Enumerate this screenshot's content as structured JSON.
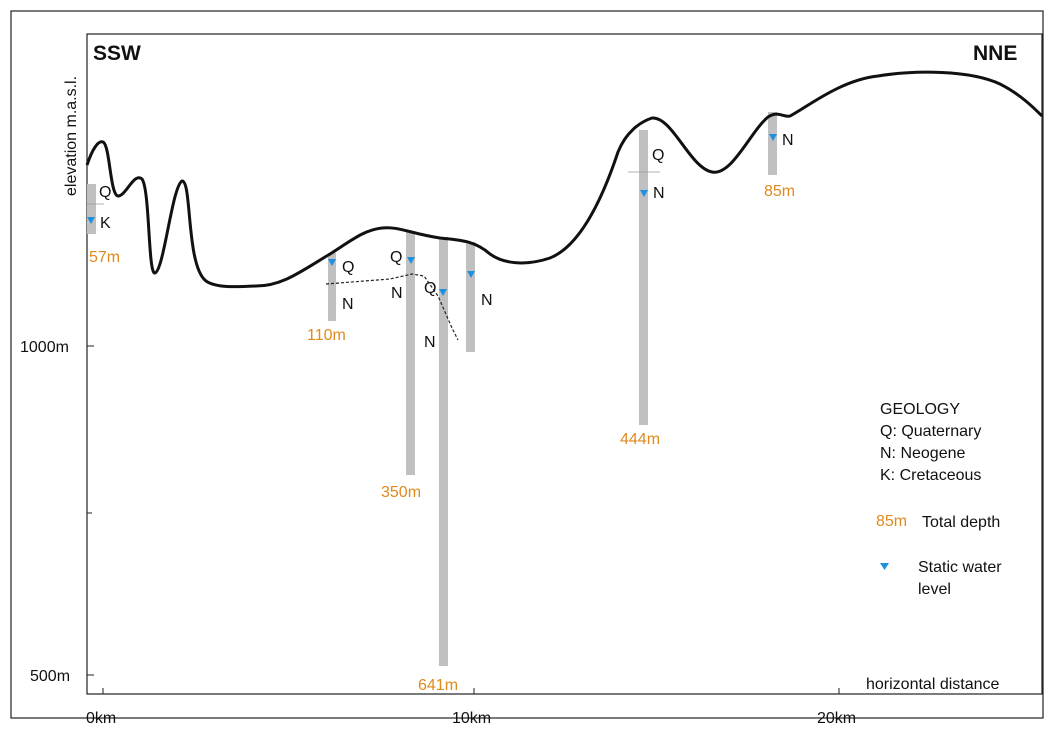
{
  "direction_left": "SSW",
  "direction_right": "NNE",
  "axis": {
    "y_label": "elevation m.a.s.l.",
    "x_label": "horizontal distance",
    "y_ticks": [
      {
        "value": 1000,
        "label": "1000m"
      },
      {
        "value": 500,
        "label": "500m"
      }
    ],
    "x_ticks": [
      {
        "value": 0,
        "label": "0km"
      },
      {
        "value": 10,
        "label": "10km"
      },
      {
        "value": 20,
        "label": "20km"
      }
    ]
  },
  "wells": [
    {
      "id": "w57",
      "depth_label": "57m",
      "layers": [
        "Q",
        "K"
      ]
    },
    {
      "id": "w110",
      "depth_label": "110m",
      "layers": [
        "Q",
        "N"
      ]
    },
    {
      "id": "w350",
      "depth_label": "350m",
      "layers": [
        "Q",
        "N"
      ]
    },
    {
      "id": "w641",
      "depth_label": "641m",
      "layers": [
        "Q",
        "N"
      ]
    },
    {
      "id": "w_unlabeled",
      "depth_label": "",
      "layers": [
        "N"
      ]
    },
    {
      "id": "w444",
      "depth_label": "444m",
      "layers": [
        "Q",
        "N"
      ]
    },
    {
      "id": "w85",
      "depth_label": "85m",
      "layers": [
        "N"
      ]
    }
  ],
  "legend": {
    "title": "GEOLOGY",
    "items": [
      "Q: Quaternary",
      "N: Neogene",
      "K: Cretaceous"
    ],
    "depth_sample": "85m",
    "depth_text": "Total depth",
    "water_text_1": "Static water",
    "water_text_2": "level"
  },
  "colors": {
    "well": "#c0c0c0",
    "water": "#1e90e0",
    "depth": "#e08a1e",
    "surface": "#111111"
  }
}
